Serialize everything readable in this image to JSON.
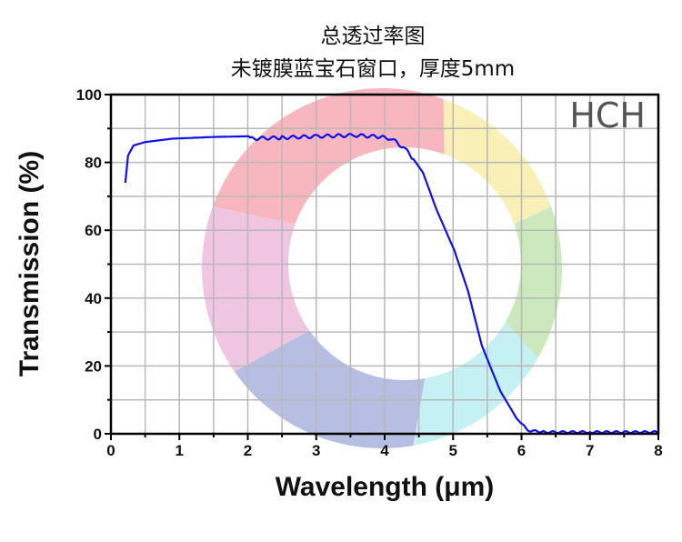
{
  "chart_data": {
    "type": "line",
    "title": "总透过率图",
    "subtitle": "未镀膜蓝宝石窗口，厚度5mm",
    "xlabel": "Wavelength (μm)",
    "ylabel": "Transmission (%)",
    "xlim": [
      0,
      8
    ],
    "ylim": [
      0,
      100
    ],
    "xticks": [
      0,
      1,
      2,
      3,
      4,
      5,
      6,
      7,
      8
    ],
    "yticks": [
      0,
      20,
      40,
      60,
      80,
      100
    ],
    "grid": true,
    "logo": "HCH",
    "line_color": "#1010ee",
    "series": [
      {
        "x": [
          0.21,
          0.25,
          0.33,
          0.5,
          0.9,
          1.5,
          2.0,
          2.03,
          2.5,
          3.03,
          3.56,
          3.9,
          4.1,
          4.3,
          4.42,
          4.56,
          4.76,
          5.02,
          5.22,
          5.42,
          5.69,
          5.93,
          6.09,
          6.35,
          7.0,
          8.0
        ],
        "y": [
          74,
          82,
          85,
          86,
          87,
          87.5,
          87.7,
          87,
          87.3,
          87.7,
          88,
          87.6,
          87,
          84,
          81,
          77,
          66,
          54,
          42,
          26,
          12.6,
          4.5,
          1,
          0.5,
          0.5,
          0.5
        ]
      }
    ]
  }
}
